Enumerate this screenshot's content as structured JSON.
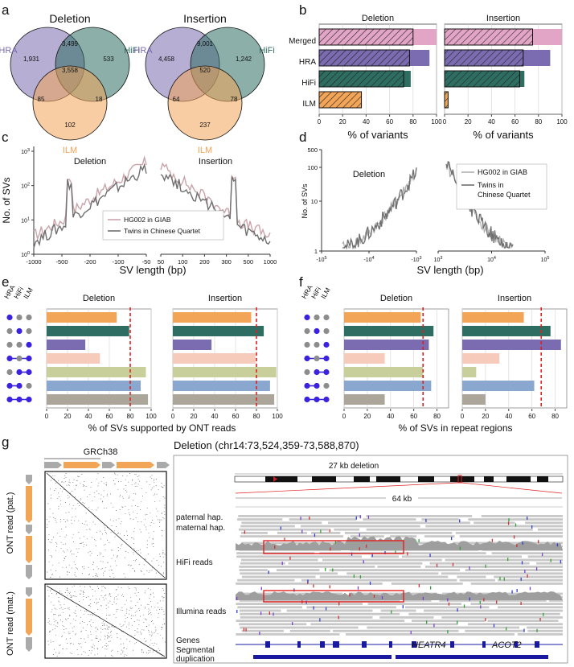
{
  "panels": {
    "a": "a",
    "b": "b",
    "c": "c",
    "d": "d",
    "e": "e",
    "f": "f",
    "g": "g"
  },
  "chart_data": [
    {
      "id": "a",
      "type": "venn",
      "sets": [
        "HRA",
        "HiFi",
        "ILM"
      ],
      "set_colors": {
        "HRA": "#7b6bb0",
        "HiFi": "#2e6e62",
        "ILM": "#f2a457"
      },
      "venns": [
        {
          "title": "Deletion",
          "regions": {
            "hra_only": "1,931",
            "hra_hifi": "3,499",
            "hifi_only": "533",
            "hra_ilm": "85",
            "all": "3,558",
            "hifi_ilm": "18",
            "ilm_only": "102"
          }
        },
        {
          "title": "Insertion",
          "regions": {
            "hra_only": "4,458",
            "hra_hifi": "9,001",
            "hifi_only": "1,242",
            "hra_ilm": "64",
            "all": "520",
            "hifi_ilm": "78",
            "ilm_only": "237"
          }
        }
      ]
    },
    {
      "id": "b",
      "type": "bar",
      "categories": [
        "Merged",
        "HRA",
        "HiFi",
        "ILM"
      ],
      "colors": [
        "#e3a5c6",
        "#7b6bb0",
        "#2e6e62",
        "#f2a457"
      ],
      "xlabel": "% of variants",
      "xlim": [
        0,
        100
      ],
      "xticks": [
        0,
        20,
        40,
        60,
        80,
        100
      ],
      "facets": [
        {
          "title": "Deletion",
          "series": [
            {
              "name": "total",
              "values": [
                100,
                94,
                78,
                36
              ]
            },
            {
              "name": "hatched",
              "values": [
                80,
                77,
                72,
                36
              ]
            }
          ]
        },
        {
          "title": "Insertion",
          "series": [
            {
              "name": "total",
              "values": [
                100,
                90,
                68,
                3
              ]
            },
            {
              "name": "hatched",
              "values": [
                75,
                67,
                64,
                3
              ]
            }
          ]
        }
      ]
    },
    {
      "id": "c",
      "type": "line",
      "ylabel": "No. of SVs",
      "xlabel": "SV length (bp)",
      "yticks": [
        "10^0",
        "10^1",
        "10^2",
        "10^3"
      ],
      "legend": [
        "HG002 in GIAB",
        "Twins in Chinese Quartet"
      ],
      "facets": [
        {
          "title": "Deletion",
          "xticks": [
            "-1000",
            "-500",
            "-200",
            "-100",
            "-50"
          ]
        },
        {
          "title": "Insertion",
          "xticks": [
            "50",
            "100",
            "200",
            "300",
            "500",
            "1000"
          ]
        }
      ]
    },
    {
      "id": "d",
      "type": "line",
      "ylabel": "No. of SVs",
      "xlabel": "SV length (bp)",
      "yticks": [
        "1",
        "10",
        "100",
        "500"
      ],
      "legend": [
        "HG002 in GIAB",
        "Twins in Chinese Quartet"
      ],
      "facets": [
        {
          "title": "Deletion",
          "xticks": [
            "-10^5",
            "-10^4",
            "-10^3"
          ]
        },
        {
          "title": "Insertion",
          "xticks": [
            "10^3",
            "10^4",
            "10^5"
          ]
        }
      ]
    },
    {
      "id": "e",
      "type": "bar",
      "xlabel": "% of SVs supported by ONT reads",
      "xticks": [
        0,
        20,
        40,
        60,
        80,
        100
      ],
      "xlim": [
        0,
        100
      ],
      "ref_line": 80,
      "columns": [
        "HRA",
        "HiFi",
        "ILM"
      ],
      "colors": [
        "#f2a457",
        "#2e6e62",
        "#7b6bb0",
        "#f6cbbb",
        "#c8cf9a",
        "#8aa8cf",
        "#aca59a"
      ],
      "facets": [
        {
          "title": "Deletion",
          "values": [
            67,
            79,
            37,
            51,
            95,
            90,
            97
          ]
        },
        {
          "title": "Insertion",
          "values": [
            75,
            87,
            37,
            79,
            99,
            93,
            97
          ]
        }
      ]
    },
    {
      "id": "f",
      "type": "bar",
      "xlabel": "% of SVs in repeat regions",
      "xticks": [
        0,
        20,
        40,
        60,
        80
      ],
      "xlim": [
        0,
        90
      ],
      "ref_line": 68,
      "columns": [
        "HRA",
        "HiFi",
        "ILM"
      ],
      "colors": [
        "#f2a457",
        "#2e6e62",
        "#7b6bb0",
        "#f6cbbb",
        "#c8cf9a",
        "#8aa8cf",
        "#aca59a"
      ],
      "facets": [
        {
          "title": "Deletion",
          "values": [
            66,
            77,
            73,
            35,
            68,
            75,
            35
          ]
        },
        {
          "title": "Insertion",
          "values": [
            53,
            76,
            85,
            32,
            12,
            62,
            20
          ]
        }
      ]
    },
    {
      "id": "g",
      "type": "genome-browser",
      "dotplot_ref": "GRCh38",
      "dotplot_rows": [
        "ONT read (pat.)",
        "ONT read (mat.)"
      ],
      "title": "Deletion (chr14:73,524,359-73,588,870)",
      "deletion_label": "27 kb deletion",
      "zoom_label": "64 kb",
      "tracks": [
        "paternal hap.",
        "maternal hap.",
        "HiFi reads",
        "Illumina reads",
        "Genes",
        "Segmental duplication"
      ],
      "genes": [
        "HEATR4",
        "ACOT2"
      ]
    }
  ]
}
